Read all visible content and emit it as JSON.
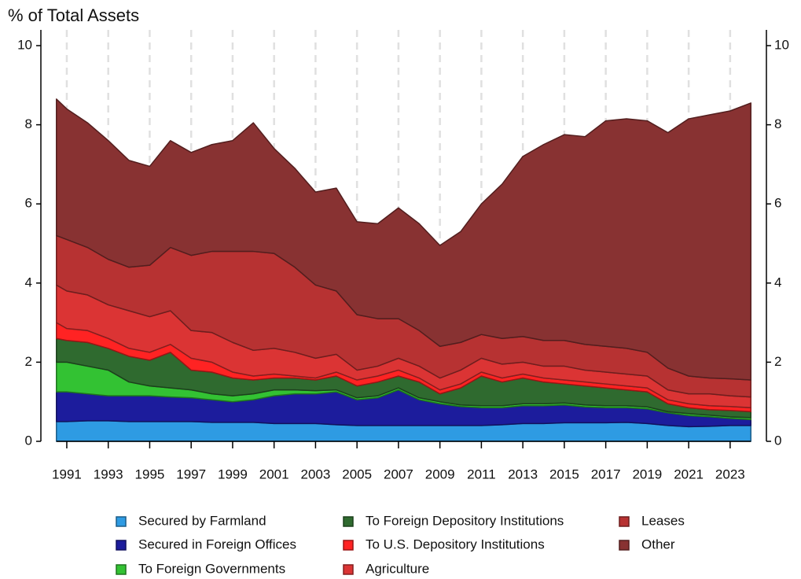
{
  "chart_data": {
    "type": "stacked_area",
    "title": "% of Total Assets",
    "x": [
      1990.5,
      1991,
      1992,
      1993,
      1994,
      1995,
      1996,
      1997,
      1998,
      1999,
      2000,
      2001,
      2002,
      2003,
      2004,
      2005,
      2006,
      2007,
      2008,
      2009,
      2010,
      2011,
      2012,
      2013,
      2014,
      2015,
      2016,
      2017,
      2018,
      2019,
      2020,
      2021,
      2022,
      2023,
      2024
    ],
    "xlim": [
      1989.75,
      2024.75
    ],
    "xticks": [
      1991,
      1993,
      1995,
      1997,
      1999,
      2001,
      2003,
      2005,
      2007,
      2009,
      2011,
      2013,
      2015,
      2017,
      2019,
      2021,
      2023
    ],
    "ylim": [
      0,
      10
    ],
    "yticks": [
      0,
      2,
      4,
      6,
      8,
      10
    ],
    "y2lim": [
      0,
      10
    ],
    "y2ticks": [
      0,
      2,
      4,
      6,
      8,
      10
    ],
    "grid": true,
    "series": [
      {
        "name": "Secured by Farmland",
        "color": "#2e9be3",
        "values": [
          0.5,
          0.5,
          0.52,
          0.52,
          0.5,
          0.5,
          0.5,
          0.5,
          0.48,
          0.48,
          0.48,
          0.45,
          0.45,
          0.45,
          0.42,
          0.4,
          0.4,
          0.4,
          0.4,
          0.4,
          0.4,
          0.4,
          0.42,
          0.45,
          0.45,
          0.47,
          0.47,
          0.47,
          0.48,
          0.45,
          0.4,
          0.37,
          0.38,
          0.4,
          0.4
        ]
      },
      {
        "name": "Secured in Foreign Offices",
        "color": "#1c1c9c",
        "values": [
          0.75,
          0.75,
          0.68,
          0.63,
          0.65,
          0.65,
          0.62,
          0.6,
          0.57,
          0.52,
          0.57,
          0.7,
          0.75,
          0.75,
          0.83,
          0.65,
          0.7,
          0.9,
          0.65,
          0.55,
          0.48,
          0.45,
          0.43,
          0.45,
          0.45,
          0.45,
          0.4,
          0.38,
          0.37,
          0.37,
          0.32,
          0.28,
          0.24,
          0.18,
          0.15
        ]
      },
      {
        "name": "To Foreign Governments",
        "color": "#33c233",
        "values": [
          0.75,
          0.75,
          0.7,
          0.65,
          0.35,
          0.25,
          0.23,
          0.2,
          0.15,
          0.15,
          0.15,
          0.15,
          0.1,
          0.08,
          0.05,
          0.05,
          0.05,
          0.05,
          0.05,
          0.05,
          0.04,
          0.05,
          0.05,
          0.05,
          0.05,
          0.05,
          0.05,
          0.05,
          0.05,
          0.05,
          0.03,
          0.05,
          0.04,
          0.04,
          0.05
        ]
      },
      {
        "name": "To Foreign Depository Institutions",
        "color": "#2f6a2f",
        "values": [
          0.6,
          0.55,
          0.6,
          0.55,
          0.65,
          0.65,
          0.9,
          0.5,
          0.55,
          0.45,
          0.35,
          0.3,
          0.3,
          0.27,
          0.35,
          0.3,
          0.35,
          0.3,
          0.4,
          0.2,
          0.43,
          0.75,
          0.6,
          0.65,
          0.55,
          0.48,
          0.48,
          0.45,
          0.4,
          0.38,
          0.2,
          0.15,
          0.14,
          0.16,
          0.15
        ]
      },
      {
        "name": "To U.S. Depository Institutions",
        "color": "#ff2323",
        "values": [
          0.4,
          0.3,
          0.3,
          0.25,
          0.2,
          0.2,
          0.2,
          0.3,
          0.25,
          0.15,
          0.1,
          0.1,
          0.05,
          0.05,
          0.1,
          0.15,
          0.15,
          0.15,
          0.1,
          0.1,
          0.1,
          0.1,
          0.1,
          0.1,
          0.1,
          0.1,
          0.1,
          0.1,
          0.1,
          0.1,
          0.1,
          0.1,
          0.1,
          0.1,
          0.1
        ]
      },
      {
        "name": "Agriculture",
        "color": "#db3434",
        "values": [
          0.95,
          0.95,
          0.9,
          0.85,
          0.95,
          0.9,
          0.85,
          0.7,
          0.75,
          0.75,
          0.65,
          0.65,
          0.6,
          0.5,
          0.45,
          0.25,
          0.25,
          0.3,
          0.3,
          0.3,
          0.35,
          0.35,
          0.35,
          0.3,
          0.3,
          0.35,
          0.3,
          0.3,
          0.3,
          0.3,
          0.25,
          0.25,
          0.3,
          0.27,
          0.27
        ]
      },
      {
        "name": "Leases",
        "color": "#b73232",
        "values": [
          1.25,
          1.3,
          1.2,
          1.15,
          1.1,
          1.3,
          1.6,
          1.9,
          2.05,
          2.3,
          2.5,
          2.4,
          2.15,
          1.85,
          1.6,
          1.4,
          1.2,
          1.0,
          0.9,
          0.8,
          0.7,
          0.6,
          0.65,
          0.65,
          0.65,
          0.65,
          0.65,
          0.65,
          0.65,
          0.6,
          0.55,
          0.45,
          0.4,
          0.43,
          0.43
        ]
      },
      {
        "name": "Other",
        "color": "#883232",
        "values": [
          3.45,
          3.3,
          3.15,
          3.0,
          2.7,
          2.5,
          2.7,
          2.6,
          2.7,
          2.8,
          3.25,
          2.65,
          2.5,
          2.35,
          2.6,
          2.35,
          2.4,
          2.8,
          2.7,
          2.55,
          2.8,
          3.3,
          3.9,
          4.55,
          4.95,
          5.2,
          5.25,
          5.7,
          5.8,
          5.85,
          5.95,
          6.5,
          6.65,
          6.77,
          7.0
        ]
      }
    ]
  }
}
